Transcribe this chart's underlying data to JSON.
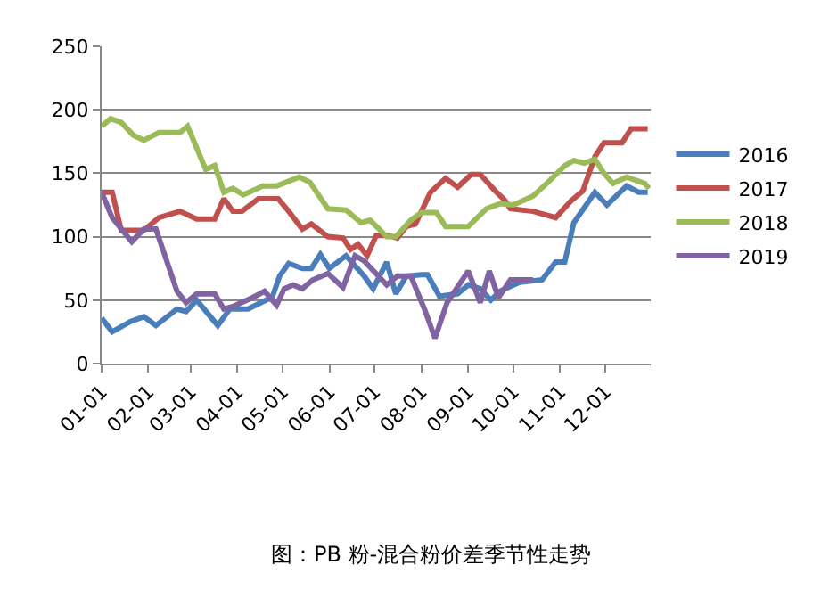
{
  "chart_data": {
    "type": "line",
    "xlim": [
      "--01-01",
      "--12-31"
    ],
    "xticks": [
      {
        "value": "--01-01",
        "label": "01-01"
      },
      {
        "value": "--02-01",
        "label": "02-01"
      },
      {
        "value": "--03-01",
        "label": "03-01"
      },
      {
        "value": "--04-01",
        "label": "04-01"
      },
      {
        "value": "--05-01",
        "label": "05-01"
      },
      {
        "value": "--06-01",
        "label": "06-01"
      },
      {
        "value": "--07-01",
        "label": "07-01"
      },
      {
        "value": "--08-01",
        "label": "08-01"
      },
      {
        "value": "--09-01",
        "label": "09-01"
      },
      {
        "value": "--10-01",
        "label": "10-01"
      },
      {
        "value": "--11-01",
        "label": "11-01"
      },
      {
        "value": "--12-01",
        "label": "12-01"
      }
    ],
    "ylim": [
      0,
      250
    ],
    "yticks": [
      0,
      50,
      100,
      150,
      200,
      250
    ],
    "grid": "y",
    "legend": "right",
    "marker": "none",
    "line_style": "solid",
    "series": [
      {
        "name": "2016",
        "color": "#4a7ebb",
        "x": [
          "--01-01",
          "--01-08",
          "--01-20",
          "--01-29",
          "--02-06",
          "--02-20",
          "--02-26",
          "--03-05",
          "--03-19",
          "--03-27",
          "--04-08",
          "--04-20",
          "--04-24",
          "--04-29",
          "--05-05",
          "--05-14",
          "--05-20",
          "--05-26",
          "--06-01",
          "--06-12",
          "--06-24",
          "--06-30",
          "--07-09",
          "--07-15",
          "--07-22",
          "--08-01",
          "--08-05",
          "--08-13",
          "--08-25",
          "--09-01",
          "--09-09",
          "--09-16",
          "--09-22",
          "--10-05",
          "--10-20",
          "--10-29",
          "--11-04",
          "--11-10",
          "--11-24",
          "--12-02",
          "--12-15",
          "--12-23",
          "--12-29"
        ],
        "values": [
          36,
          25,
          33,
          37,
          30,
          43,
          41,
          50,
          30,
          43,
          43,
          50,
          52,
          69,
          79,
          75,
          75,
          86,
          75,
          85,
          69,
          59,
          80,
          55,
          69,
          70,
          70,
          53,
          55,
          62,
          59,
          50,
          57,
          64,
          66,
          80,
          80,
          111,
          135,
          125,
          140,
          135,
          135
        ]
      },
      {
        "name": "2017",
        "color": "#c0504d",
        "x": [
          "--01-01",
          "--01-08",
          "--01-14",
          "--01-29",
          "--02-08",
          "--02-22",
          "--03-05",
          "--03-17",
          "--03-23",
          "--03-29",
          "--04-04",
          "--04-15",
          "--04-28",
          "--05-05",
          "--05-14",
          "--05-20",
          "--05-31",
          "--06-10",
          "--06-15",
          "--06-20",
          "--06-26",
          "--07-02",
          "--07-10",
          "--07-16",
          "--07-22",
          "--07-28",
          "--08-07",
          "--08-17",
          "--08-25",
          "--09-03",
          "--09-09",
          "--09-19",
          "--09-25",
          "--09-29",
          "--10-14",
          "--10-29",
          "--11-08",
          "--11-16",
          "--11-24",
          "--11-30",
          "--12-12",
          "--12-18",
          "--12-29"
        ],
        "values": [
          135,
          135,
          105,
          105,
          115,
          120,
          114,
          114,
          130,
          120,
          120,
          130,
          130,
          120,
          106,
          110,
          100,
          99,
          90,
          94,
          85,
          101,
          101,
          99,
          108,
          110,
          135,
          146,
          139,
          149,
          149,
          136,
          129,
          122,
          120,
          115,
          128,
          136,
          163,
          174,
          174,
          185,
          185
        ]
      },
      {
        "name": "2018",
        "color": "#9bbb59",
        "x": [
          "--01-01",
          "--01-07",
          "--01-14",
          "--01-22",
          "--01-29",
          "--02-08",
          "--02-22",
          "--02-27",
          "--03-11",
          "--03-17",
          "--03-23",
          "--03-29",
          "--04-05",
          "--04-18",
          "--04-27",
          "--05-12",
          "--05-19",
          "--05-31",
          "--06-12",
          "--06-22",
          "--06-28",
          "--07-09",
          "--07-15",
          "--07-25",
          "--08-01",
          "--08-11",
          "--08-17",
          "--09-01",
          "--09-13",
          "--09-22",
          "--10-01",
          "--10-14",
          "--10-24",
          "--11-04",
          "--11-10",
          "--11-17",
          "--11-24",
          "--11-30",
          "--12-06",
          "--12-15",
          "--12-27",
          "--12-30"
        ],
        "values": [
          187,
          193,
          190,
          180,
          176,
          182,
          182,
          187,
          153,
          156,
          135,
          138,
          133,
          140,
          140,
          147,
          143,
          122,
          121,
          111,
          113,
          100,
          100,
          113,
          119,
          119,
          108,
          108,
          122,
          126,
          125,
          132,
          143,
          156,
          160,
          158,
          161,
          150,
          142,
          147,
          142,
          138
        ]
      },
      {
        "name": "2019",
        "color": "#8064a2",
        "x": [
          "--01-01",
          "--01-08",
          "--01-21",
          "--01-29",
          "--02-06",
          "--02-12",
          "--02-20",
          "--02-26",
          "--03-05",
          "--03-17",
          "--03-23",
          "--03-29",
          "--04-11",
          "--04-19",
          "--04-27",
          "--05-02",
          "--05-08",
          "--05-14",
          "--05-21",
          "--05-31",
          "--06-10",
          "--06-18",
          "--06-24",
          "--07-09",
          "--07-16",
          "--07-25",
          "--08-03",
          "--08-10",
          "--08-18",
          "--09-01",
          "--09-09",
          "--09-15",
          "--09-21",
          "--09-29",
          "--10-14"
        ],
        "values": [
          135,
          115,
          96,
          106,
          106,
          85,
          57,
          48,
          55,
          55,
          43,
          45,
          52,
          57,
          46,
          59,
          62,
          59,
          66,
          71,
          60,
          85,
          81,
          62,
          69,
          69,
          43,
          20,
          48,
          73,
          48,
          73,
          52,
          66,
          66
        ]
      }
    ],
    "annotations": [
      "图：PB 粉-混合粉价差季节性走势"
    ]
  }
}
